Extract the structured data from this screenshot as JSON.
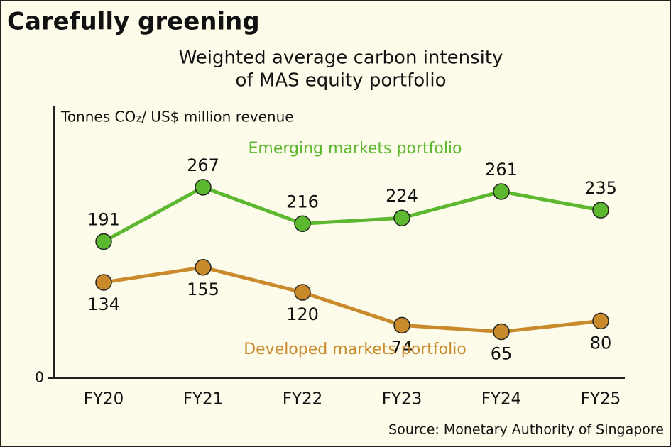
{
  "chart_data": {
    "type": "line",
    "title": "Carefully greening",
    "subtitle": [
      "Weighted average carbon intensity",
      "of MAS equity portfolio"
    ],
    "y_label": "Tonnes CO₂/ US$ million revenue",
    "source": "Source: Monetary Authority of Singapore",
    "categories": [
      "FY20",
      "FY21",
      "FY22",
      "FY23",
      "FY24",
      "FY25"
    ],
    "series": [
      {
        "name": "Emerging markets portfolio",
        "color": "#5cb82e",
        "values": [
          191,
          267,
          216,
          224,
          261,
          235
        ]
      },
      {
        "name": "Developed markets portfolio",
        "color": "#c98a2c",
        "values": [
          134,
          155,
          120,
          74,
          65,
          80
        ]
      }
    ],
    "ylim": [
      0,
      380
    ],
    "yticks": [
      0
    ],
    "grid": false
  }
}
